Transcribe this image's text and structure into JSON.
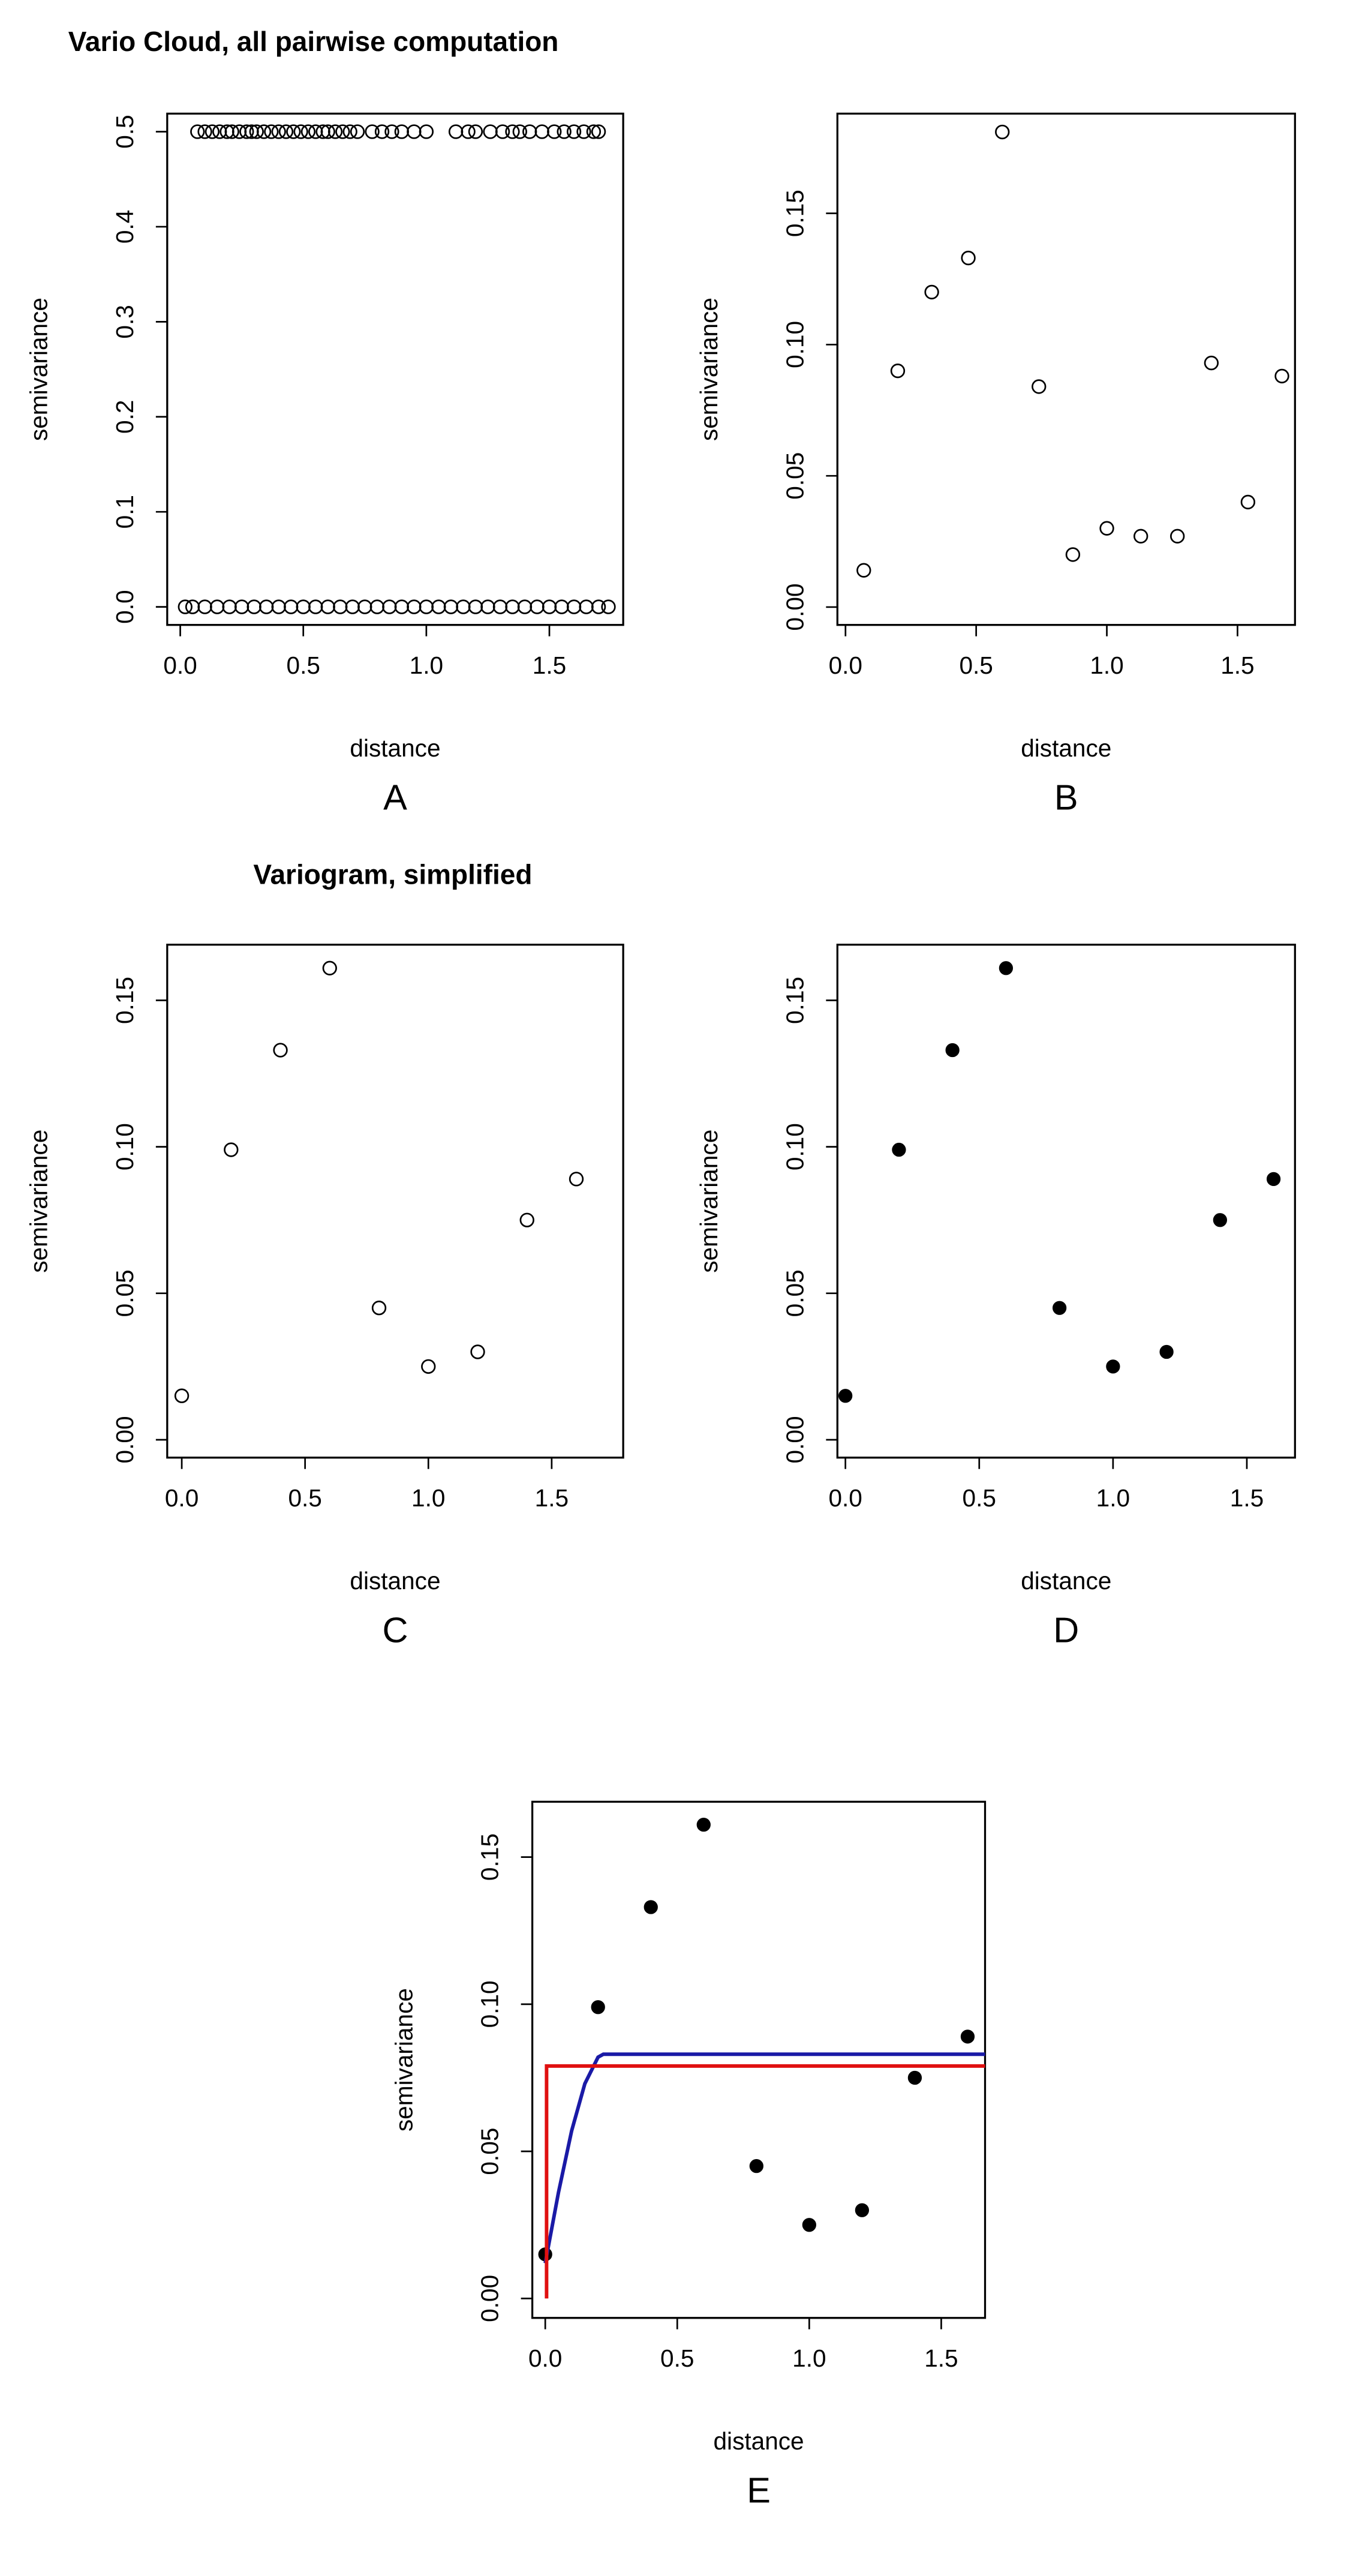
{
  "chart_data": [
    {
      "type": "scatter",
      "title": "Vario Cloud, all pairwise computation",
      "x_label": "distance",
      "y_label": "semivariance",
      "panel_label": "A",
      "xlim": [
        -0.053,
        1.8
      ],
      "ylim": [
        -0.019,
        0.519
      ],
      "xticks": [
        {
          "value": 0,
          "label": "0.0"
        },
        {
          "value": 0.5,
          "label": "0.5"
        },
        {
          "value": 1,
          "label": "1.0"
        },
        {
          "value": 1.5,
          "label": "1.5"
        }
      ],
      "yticks": [
        {
          "value": 0,
          "label": "0.0"
        },
        {
          "value": 0.1,
          "label": "0.1"
        },
        {
          "value": 0.2,
          "label": "0.2"
        },
        {
          "value": 0.3,
          "label": "0.3"
        },
        {
          "value": 0.4,
          "label": "0.4"
        },
        {
          "value": 0.5,
          "label": "0.5"
        }
      ],
      "series": [
        {
          "color": "#000000",
          "marker": "open",
          "x": [
            0.07,
            0.1,
            0.13,
            0.16,
            0.19,
            0.21,
            0.24,
            0.27,
            0.29,
            0.31,
            0.34,
            0.37,
            0.4,
            0.43,
            0.46,
            0.49,
            0.52,
            0.55,
            0.58,
            0.6,
            0.63,
            0.66,
            0.69,
            0.72,
            0.78,
            0.82,
            0.86,
            0.9,
            0.95,
            1.0,
            1.12,
            1.17,
            1.2,
            1.26,
            1.31,
            1.35,
            1.38,
            1.42,
            1.47,
            1.52,
            1.56,
            1.6,
            1.64,
            1.68,
            1.7
          ],
          "values": [
            0.5,
            0.5,
            0.5,
            0.5,
            0.5,
            0.5,
            0.5,
            0.5,
            0.5,
            0.5,
            0.5,
            0.5,
            0.5,
            0.5,
            0.5,
            0.5,
            0.5,
            0.5,
            0.5,
            0.5,
            0.5,
            0.5,
            0.5,
            0.5,
            0.5,
            0.5,
            0.5,
            0.5,
            0.5,
            0.5,
            0.5,
            0.5,
            0.5,
            0.5,
            0.5,
            0.5,
            0.5,
            0.5,
            0.5,
            0.5,
            0.5,
            0.5,
            0.5,
            0.5,
            0.5
          ]
        },
        {
          "color": "#000000",
          "marker": "open",
          "x": [
            0.02,
            0.05,
            0.1,
            0.15,
            0.2,
            0.25,
            0.3,
            0.35,
            0.4,
            0.45,
            0.5,
            0.55,
            0.6,
            0.65,
            0.7,
            0.75,
            0.8,
            0.85,
            0.9,
            0.95,
            1.0,
            1.05,
            1.1,
            1.15,
            1.2,
            1.25,
            1.3,
            1.35,
            1.4,
            1.45,
            1.5,
            1.55,
            1.6,
            1.65,
            1.7,
            1.74
          ],
          "values": [
            0,
            0,
            0,
            0,
            0,
            0,
            0,
            0,
            0,
            0,
            0,
            0,
            0,
            0,
            0,
            0,
            0,
            0,
            0,
            0,
            0,
            0,
            0,
            0,
            0,
            0,
            0,
            0,
            0,
            0,
            0,
            0,
            0,
            0,
            0,
            0
          ]
        }
      ]
    },
    {
      "type": "scatter",
      "x_label": "distance",
      "y_label": "semivariance",
      "panel_label": "B",
      "xlim": [
        -0.031,
        1.72
      ],
      "ylim": [
        -0.0068,
        0.188
      ],
      "xticks": [
        {
          "value": 0,
          "label": "0.0"
        },
        {
          "value": 0.5,
          "label": "0.5"
        },
        {
          "value": 1,
          "label": "1.0"
        },
        {
          "value": 1.5,
          "label": "1.5"
        }
      ],
      "yticks": [
        {
          "value": 0,
          "label": "0.00"
        },
        {
          "value": 0.05,
          "label": "0.05"
        },
        {
          "value": 0.1,
          "label": "0.10"
        },
        {
          "value": 0.15,
          "label": "0.15"
        }
      ],
      "series": [
        {
          "color": "#000000",
          "marker": "open",
          "x": [
            0.07,
            0.2,
            0.33,
            0.47,
            0.6,
            0.74,
            0.87,
            1.0,
            1.13,
            1.27,
            1.4,
            1.54,
            1.67
          ],
          "values": [
            0.014,
            0.09,
            0.12,
            0.133,
            0.181,
            0.084,
            0.02,
            0.03,
            0.027,
            0.027,
            0.093,
            0.04,
            0.088
          ]
        }
      ]
    },
    {
      "type": "scatter",
      "title": "Variogram, simplified",
      "x_label": "distance",
      "y_label": "semivariance",
      "panel_label": "C",
      "xlim": [
        -0.059,
        1.79
      ],
      "ylim": [
        -0.0061,
        0.169
      ],
      "xticks": [
        {
          "value": 0,
          "label": "0.0"
        },
        {
          "value": 0.5,
          "label": "0.5"
        },
        {
          "value": 1,
          "label": "1.0"
        },
        {
          "value": 1.5,
          "label": "1.5"
        }
      ],
      "yticks": [
        {
          "value": 0,
          "label": "0.00"
        },
        {
          "value": 0.05,
          "label": "0.05"
        },
        {
          "value": 0.1,
          "label": "0.10"
        },
        {
          "value": 0.15,
          "label": "0.15"
        }
      ],
      "series": [
        {
          "color": "#000000",
          "marker": "open",
          "x": [
            0,
            0.2,
            0.4,
            0.6,
            0.8,
            1.0,
            1.2,
            1.4,
            1.6
          ],
          "values": [
            0.015,
            0.099,
            0.133,
            0.161,
            0.045,
            0.025,
            0.03,
            0.075,
            0.089
          ]
        }
      ]
    },
    {
      "type": "scatter",
      "x_label": "distance",
      "y_label": "semivariance",
      "panel_label": "D",
      "xlim": [
        -0.03,
        1.68
      ],
      "ylim": [
        -0.0061,
        0.169
      ],
      "xticks": [
        {
          "value": 0,
          "label": "0.0"
        },
        {
          "value": 0.5,
          "label": "0.5"
        },
        {
          "value": 1,
          "label": "1.0"
        },
        {
          "value": 1.5,
          "label": "1.5"
        }
      ],
      "yticks": [
        {
          "value": 0,
          "label": "0.00"
        },
        {
          "value": 0.05,
          "label": "0.05"
        },
        {
          "value": 0.1,
          "label": "0.10"
        },
        {
          "value": 0.15,
          "label": "0.15"
        }
      ],
      "series": [
        {
          "color": "#000000",
          "marker": "filled",
          "x": [
            0,
            0.2,
            0.4,
            0.6,
            0.8,
            1.0,
            1.2,
            1.4,
            1.6
          ],
          "values": [
            0.015,
            0.099,
            0.133,
            0.161,
            0.045,
            0.025,
            0.03,
            0.075,
            0.089
          ]
        }
      ]
    },
    {
      "type": "scatter",
      "x_label": "distance",
      "y_label": "semivariance",
      "panel_label": "E",
      "xlim": [
        -0.049,
        1.666
      ],
      "ylim": [
        -0.0066,
        0.1688
      ],
      "xticks": [
        {
          "value": 0,
          "label": "0.0"
        },
        {
          "value": 0.5,
          "label": "0.5"
        },
        {
          "value": 1,
          "label": "1.0"
        },
        {
          "value": 1.5,
          "label": "1.5"
        }
      ],
      "yticks": [
        {
          "value": 0,
          "label": "0.00"
        },
        {
          "value": 0.05,
          "label": "0.05"
        },
        {
          "value": 0.1,
          "label": "0.10"
        },
        {
          "value": 0.15,
          "label": "0.15"
        }
      ],
      "series": [
        {
          "color": "#000000",
          "marker": "filled",
          "x": [
            0,
            0.2,
            0.4,
            0.6,
            0.8,
            1.0,
            1.2,
            1.4,
            1.6
          ],
          "values": [
            0.015,
            0.099,
            0.133,
            0.161,
            0.045,
            0.025,
            0.03,
            0.075,
            0.089
          ]
        },
        {
          "color": "#1a1aa6",
          "marker": "line",
          "x": [
            0,
            0.05,
            0.1,
            0.15,
            0.2,
            0.22,
            1.666
          ],
          "values": [
            0.012,
            0.036,
            0.057,
            0.073,
            0.082,
            0.083,
            0.083
          ]
        },
        {
          "color": "#e01010",
          "marker": "line",
          "x": [
            0.005,
            0.005,
            1.666
          ],
          "values": [
            0,
            0.079,
            0.079
          ]
        }
      ]
    }
  ]
}
